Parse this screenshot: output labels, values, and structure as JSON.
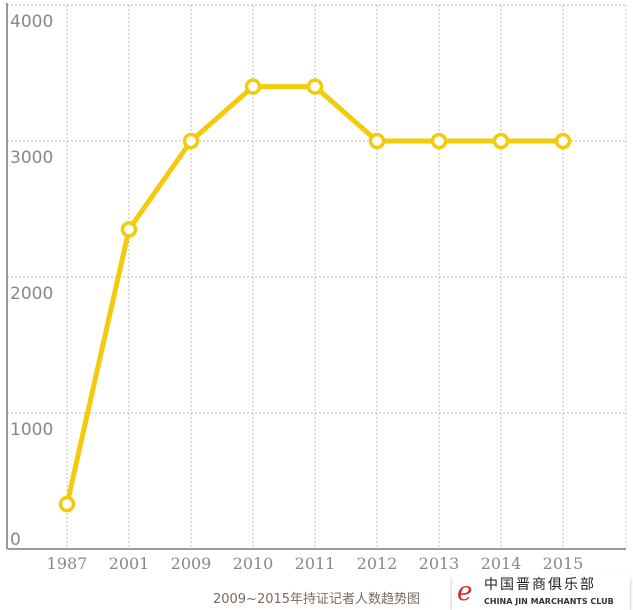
{
  "chart_data": {
    "type": "line",
    "categories": [
      "1987",
      "2001",
      "2009",
      "2010",
      "2011",
      "2012",
      "2013",
      "2014",
      "2015"
    ],
    "series": [
      {
        "values": [
          330,
          2350,
          3000,
          3400,
          3400,
          3000,
          3000,
          3000,
          3000
        ],
        "color": "#f2cc0c"
      }
    ],
    "yticks": [
      "0",
      "1000",
      "2000",
      "3000",
      "4000"
    ],
    "ylim": [
      0,
      4000
    ],
    "grid": true,
    "title": "",
    "xlabel": "",
    "ylabel": ""
  },
  "caption": "2009~2015年持证记者人数趋势图",
  "watermark": {
    "mark": "e",
    "name_cn": "中国晋商俱乐部",
    "name_en": "CHINA JIN MARCHANTS CLUB"
  }
}
